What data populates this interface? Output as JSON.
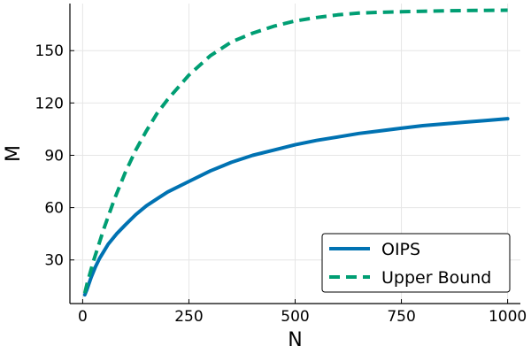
{
  "chart_data": {
    "type": "line",
    "title": "",
    "xlabel": "N",
    "ylabel": "M",
    "xlim": [
      -30,
      1030
    ],
    "ylim": [
      5,
      177
    ],
    "xticks": [
      0,
      250,
      500,
      750,
      1000
    ],
    "yticks": [
      30,
      60,
      90,
      120,
      150
    ],
    "grid": true,
    "legend_position": "bottom-right",
    "series": [
      {
        "name": "OIPS",
        "color": "#0072b2",
        "style": "solid",
        "x": [
          5,
          10,
          20,
          30,
          40,
          50,
          60,
          80,
          100,
          125,
          150,
          175,
          200,
          250,
          300,
          350,
          400,
          450,
          500,
          550,
          600,
          650,
          700,
          750,
          800,
          850,
          900,
          950,
          1000
        ],
        "y": [
          10,
          13,
          20,
          26,
          31,
          35,
          39,
          45,
          50,
          56,
          61,
          65,
          69,
          75,
          81,
          86,
          90,
          93,
          96,
          98.5,
          100.5,
          102.5,
          104,
          105.5,
          107,
          108,
          109,
          110,
          111
        ]
      },
      {
        "name": "Upper Bound",
        "color": "#009e73",
        "style": "dashed",
        "x": [
          5,
          10,
          25,
          50,
          75,
          100,
          125,
          150,
          175,
          200,
          250,
          300,
          350,
          400,
          450,
          500,
          550,
          600,
          650,
          700,
          750,
          800,
          850,
          900,
          950,
          1000
        ],
        "y": [
          11,
          16,
          29,
          48,
          65,
          80,
          93,
          104,
          114,
          122,
          136,
          147,
          155,
          160,
          164,
          167,
          169,
          170.5,
          171.5,
          172,
          172.3,
          172.6,
          172.8,
          173,
          173.1,
          173.2
        ]
      }
    ]
  }
}
